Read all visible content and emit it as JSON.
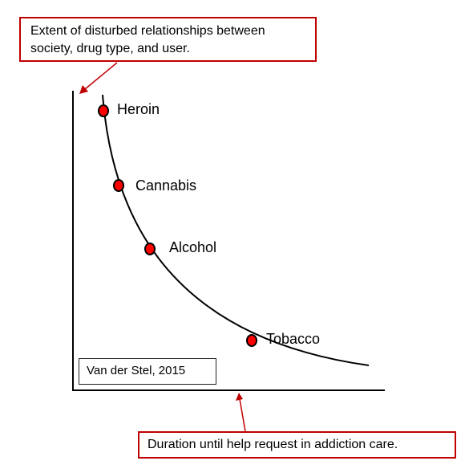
{
  "y_axis_callout": {
    "line1": "Extent of disturbed relationships between",
    "line2": "society, drug type, and user."
  },
  "x_axis_callout": {
    "text": "Duration until help request in addiction care."
  },
  "source": "Van der Stel, 2015",
  "points": [
    {
      "label": "Heroin"
    },
    {
      "label": "Cannabis"
    },
    {
      "label": "Alcohol"
    },
    {
      "label": "Tobacco"
    }
  ],
  "colors": {
    "accent": "#c00000",
    "marker_fill": "#ff0000",
    "line": "#000000"
  }
}
